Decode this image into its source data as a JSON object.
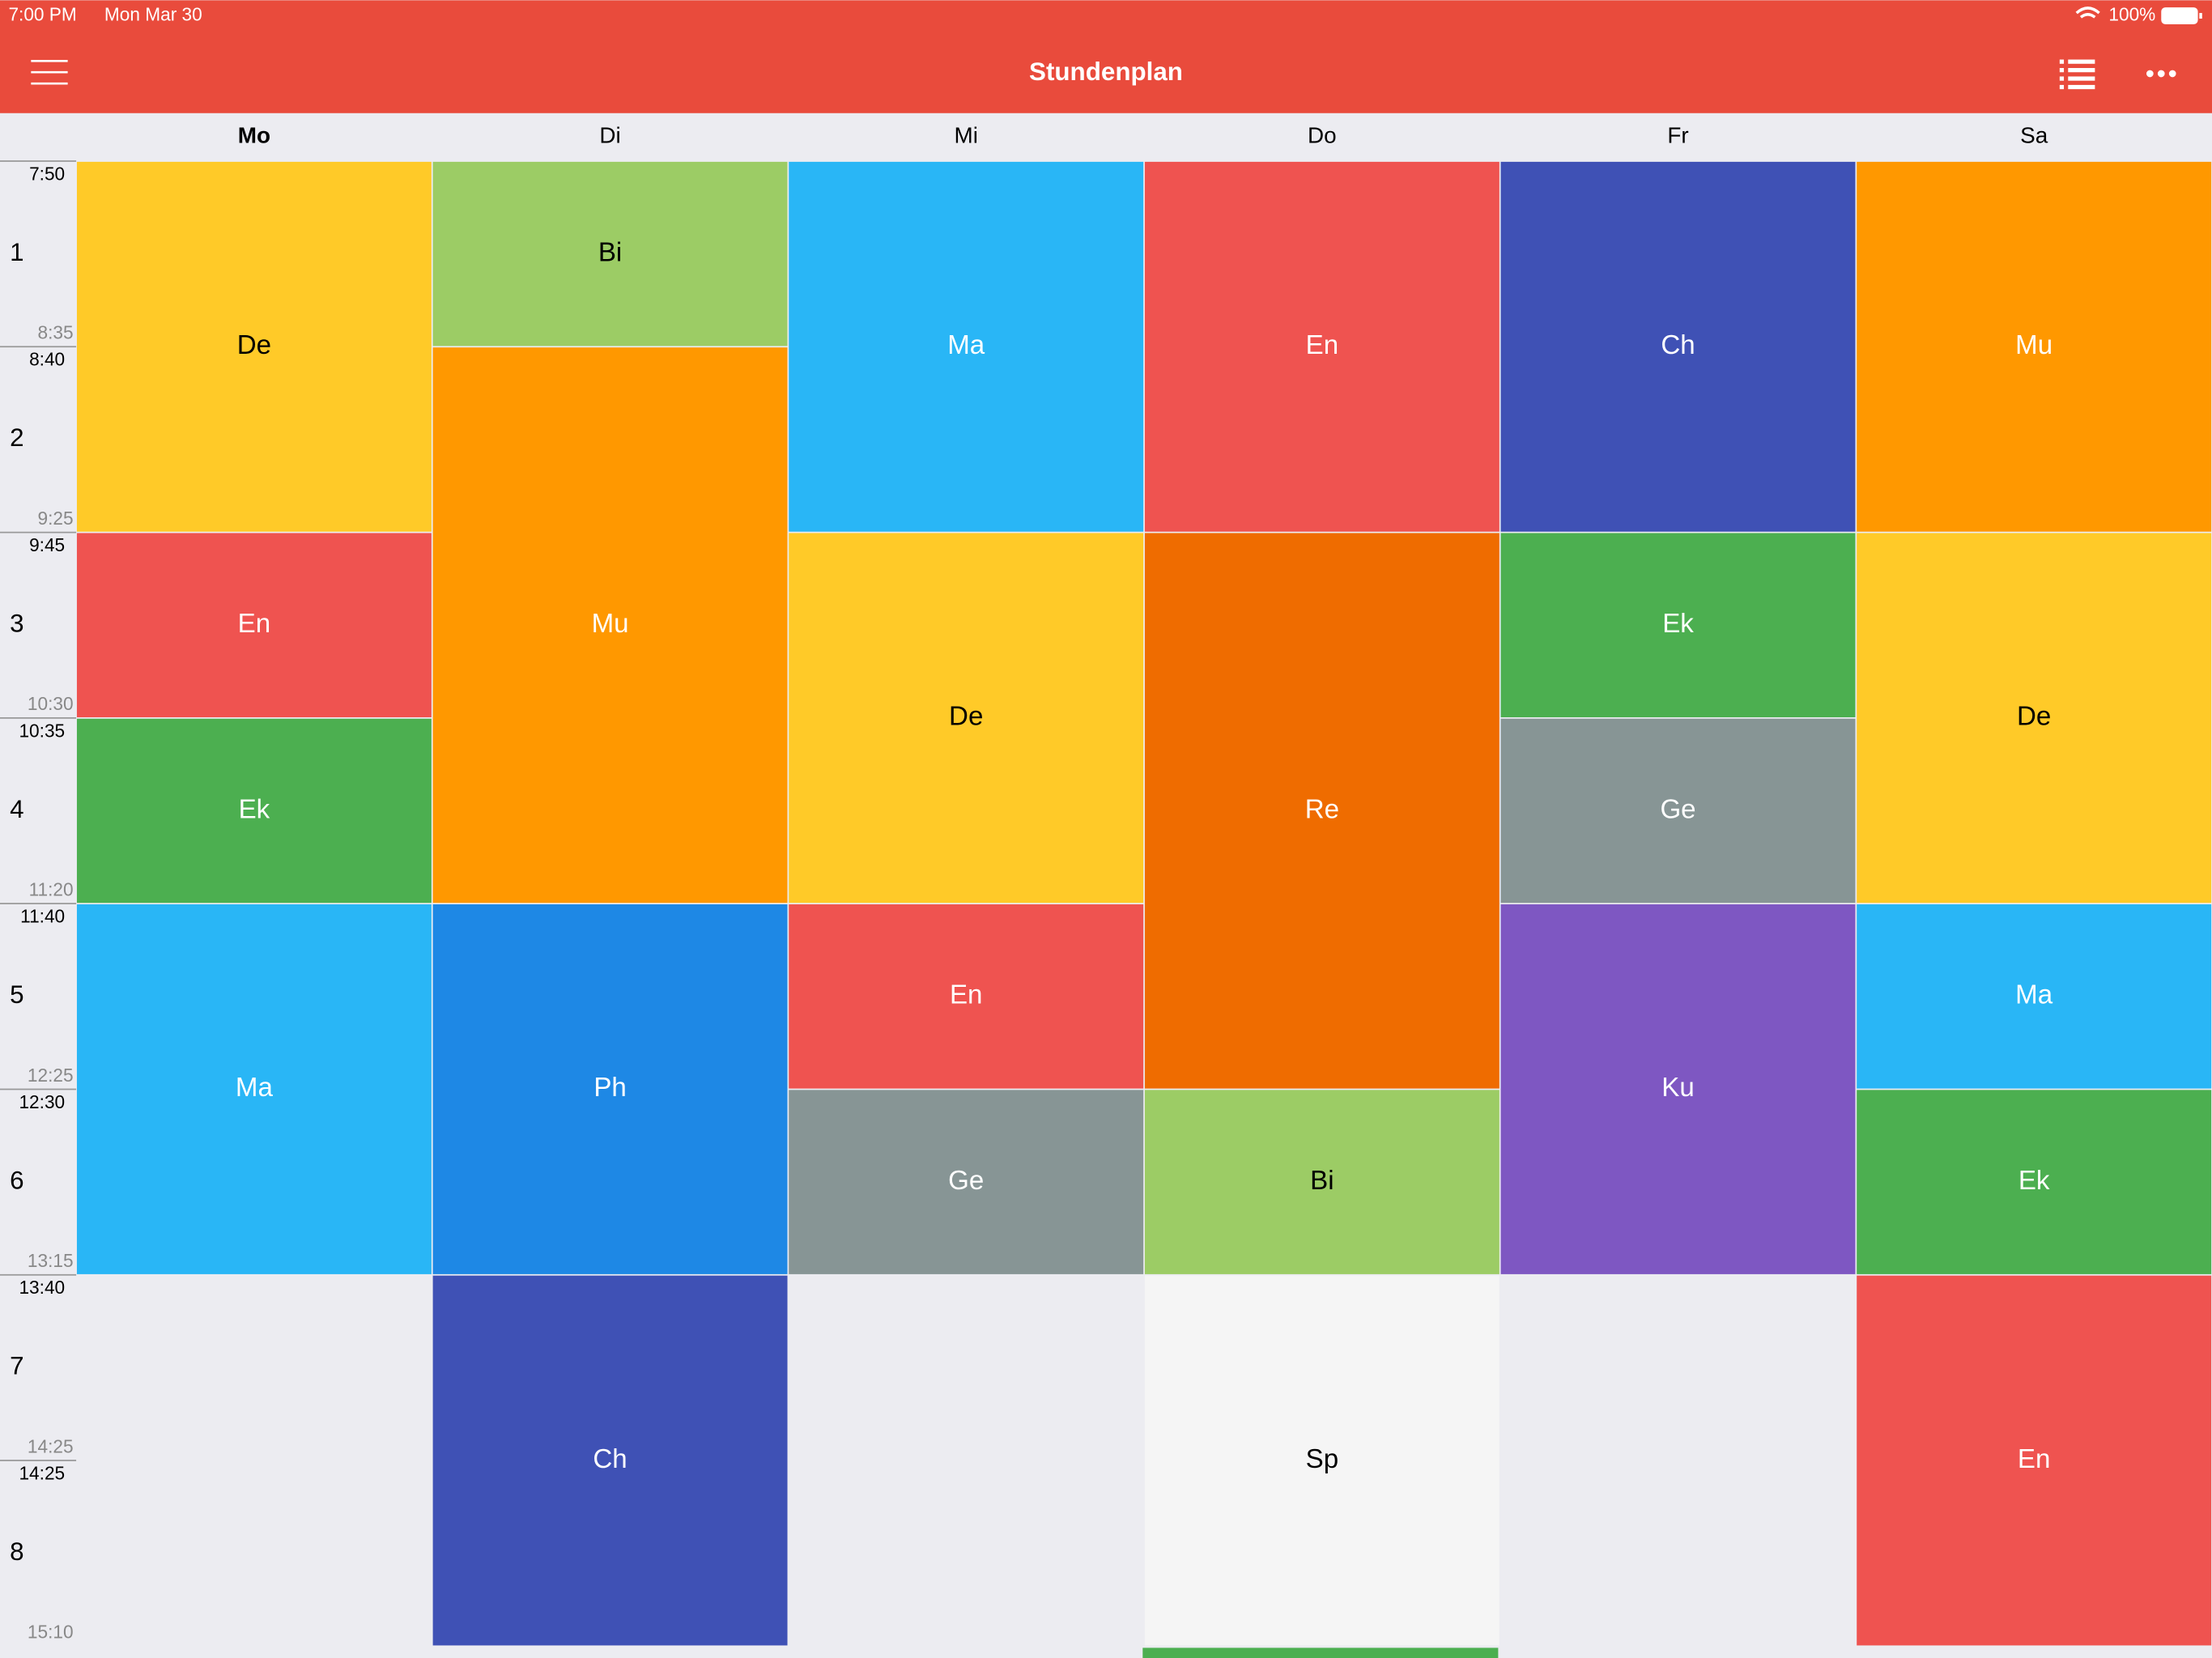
{
  "status_bar": {
    "time": "7:00 PM",
    "date": "Mon Mar 30",
    "battery": "100%"
  },
  "nav": {
    "title": "Stundenplan"
  },
  "current_day_index": 0,
  "days": [
    "Mo",
    "Di",
    "Mi",
    "Do",
    "Fr",
    "Sa"
  ],
  "periods": [
    {
      "number": "1",
      "start": "7:50",
      "end": "8:35"
    },
    {
      "number": "2",
      "start": "8:40",
      "end": "9:25"
    },
    {
      "number": "3",
      "start": "9:45",
      "end": "10:30"
    },
    {
      "number": "4",
      "start": "10:35",
      "end": "11:20"
    },
    {
      "number": "5",
      "start": "11:40",
      "end": "12:25"
    },
    {
      "number": "6",
      "start": "12:30",
      "end": "13:15"
    },
    {
      "number": "7",
      "start": "13:40",
      "end": "14:25"
    },
    {
      "number": "8",
      "start": "14:25",
      "end": "15:10"
    }
  ],
  "lessons": [
    {
      "day": 0,
      "period": 1,
      "span": 2,
      "subject": "De",
      "color": "#ffca28",
      "text_color": "#000000"
    },
    {
      "day": 0,
      "period": 3,
      "span": 1,
      "subject": "En",
      "color": "#ef5350",
      "text_color": "#ffffff"
    },
    {
      "day": 0,
      "period": 4,
      "span": 1,
      "subject": "Ek",
      "color": "#4caf50",
      "text_color": "#ffffff"
    },
    {
      "day": 0,
      "period": 5,
      "span": 2,
      "subject": "Ma",
      "color": "#29b6f6",
      "text_color": "#ffffff"
    },
    {
      "day": 1,
      "period": 1,
      "span": 1,
      "subject": "Bi",
      "color": "#9ccc65",
      "text_color": "#000000"
    },
    {
      "day": 1,
      "period": 2,
      "span": 3,
      "subject": "Mu",
      "color": "#ff9800",
      "text_color": "#ffffff"
    },
    {
      "day": 1,
      "period": 5,
      "span": 2,
      "subject": "Ph",
      "color": "#1e88e5",
      "text_color": "#ffffff"
    },
    {
      "day": 1,
      "period": 7,
      "span": 2,
      "subject": "Ch",
      "color": "#3f51b5",
      "text_color": "#ffffff"
    },
    {
      "day": 2,
      "period": 1,
      "span": 2,
      "subject": "Ma",
      "color": "#29b6f6",
      "text_color": "#ffffff"
    },
    {
      "day": 2,
      "period": 3,
      "span": 2,
      "subject": "De",
      "color": "#ffca28",
      "text_color": "#000000"
    },
    {
      "day": 2,
      "period": 5,
      "span": 1,
      "subject": "En",
      "color": "#ef5350",
      "text_color": "#ffffff"
    },
    {
      "day": 2,
      "period": 6,
      "span": 1,
      "subject": "Ge",
      "color": "#879595",
      "text_color": "#ffffff"
    },
    {
      "day": 3,
      "period": 1,
      "span": 2,
      "subject": "En",
      "color": "#ef5350",
      "text_color": "#ffffff"
    },
    {
      "day": 3,
      "period": 3,
      "span": 3,
      "subject": "Re",
      "color": "#ef6c00",
      "text_color": "#ffffff"
    },
    {
      "day": 3,
      "period": 6,
      "span": 1,
      "subject": "Bi",
      "color": "#9ccc65",
      "text_color": "#000000"
    },
    {
      "day": 3,
      "period": 7,
      "span": 2,
      "subject": "Sp",
      "color": "#f5f5f5",
      "text_color": "#000000"
    },
    {
      "day": 4,
      "period": 1,
      "span": 2,
      "subject": "Ch",
      "color": "#3f51b5",
      "text_color": "#ffffff"
    },
    {
      "day": 4,
      "period": 3,
      "span": 1,
      "subject": "Ek",
      "color": "#4caf50",
      "text_color": "#ffffff"
    },
    {
      "day": 4,
      "period": 4,
      "span": 1,
      "subject": "Ge",
      "color": "#879595",
      "text_color": "#ffffff"
    },
    {
      "day": 4,
      "period": 5,
      "span": 2,
      "subject": "Ku",
      "color": "#7e57c2",
      "text_color": "#ffffff"
    },
    {
      "day": 5,
      "period": 1,
      "span": 2,
      "subject": "Mu",
      "color": "#ff9800",
      "text_color": "#ffffff"
    },
    {
      "day": 5,
      "period": 3,
      "span": 2,
      "subject": "De",
      "color": "#ffca28",
      "text_color": "#000000"
    },
    {
      "day": 5,
      "period": 5,
      "span": 1,
      "subject": "Ma",
      "color": "#29b6f6",
      "text_color": "#ffffff"
    },
    {
      "day": 5,
      "period": 6,
      "span": 1,
      "subject": "Ek",
      "color": "#4caf50",
      "text_color": "#ffffff"
    },
    {
      "day": 5,
      "period": 7,
      "span": 2,
      "subject": "En",
      "color": "#ef5350",
      "text_color": "#ffffff"
    }
  ]
}
